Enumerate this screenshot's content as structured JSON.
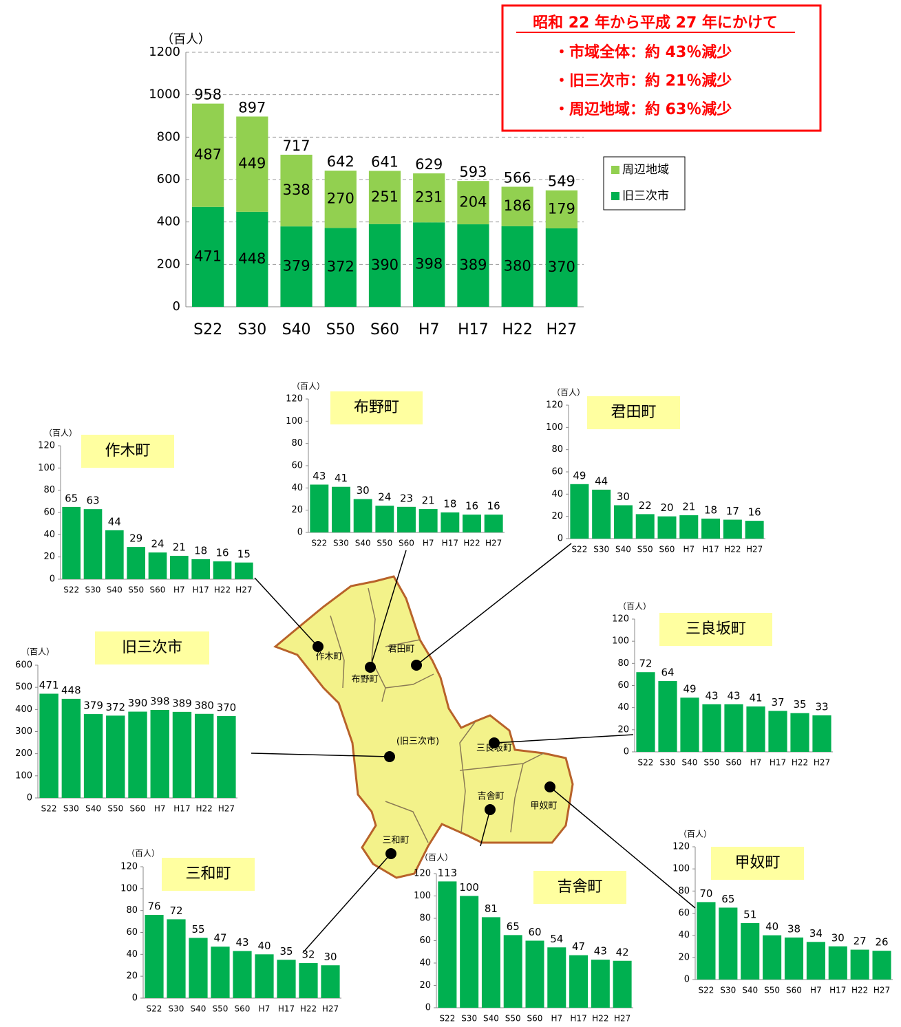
{
  "chart_data": [
    {
      "type": "bar",
      "stacked": true,
      "unit_label": "（百人）",
      "categories": [
        "S22",
        "S30",
        "S40",
        "S50",
        "S60",
        "H7",
        "H17",
        "H22",
        "H27"
      ],
      "series": [
        {
          "name": "旧三次市",
          "color": "#00b050",
          "values": [
            471,
            448,
            379,
            372,
            390,
            398,
            389,
            380,
            370
          ]
        },
        {
          "name": "周辺地域",
          "color": "#92d050",
          "values": [
            487,
            449,
            338,
            270,
            251,
            231,
            204,
            186,
            179
          ]
        }
      ],
      "totals": [
        958,
        897,
        717,
        642,
        641,
        629,
        593,
        566,
        549
      ],
      "ylim": [
        0,
        1200
      ],
      "yticks": [
        0,
        200,
        400,
        600,
        800,
        1000,
        1200
      ],
      "grid": true,
      "annotations": [
        "昭和 22 年から平成 27 年にかけて",
        "・市域全体：約 43％減少",
        "・旧三次市：約 21％減少",
        "・周辺地域：約 63％減少"
      ]
    },
    {
      "type": "bar",
      "title": "作木町",
      "unit_label": "（百人）",
      "color": "#00b050",
      "categories": [
        "S22",
        "S30",
        "S40",
        "S50",
        "S60",
        "H7",
        "H17",
        "H22",
        "H27"
      ],
      "values": [
        65,
        63,
        44,
        29,
        24,
        21,
        18,
        16,
        15
      ],
      "ylim": [
        0,
        120
      ],
      "yticks": [
        0,
        20,
        40,
        60,
        80,
        100,
        120
      ],
      "grid": false
    },
    {
      "type": "bar",
      "title": "布野町",
      "unit_label": "（百人）",
      "color": "#00b050",
      "categories": [
        "S22",
        "S30",
        "S40",
        "S50",
        "S60",
        "H7",
        "H17",
        "H22",
        "H27"
      ],
      "values": [
        43,
        41,
        30,
        24,
        23,
        21,
        18,
        16,
        16
      ],
      "ylim": [
        0,
        120
      ],
      "yticks": [
        0,
        20,
        40,
        60,
        80,
        100,
        120
      ],
      "grid": false
    },
    {
      "type": "bar",
      "title": "君田町",
      "unit_label": "（百人）",
      "color": "#00b050",
      "categories": [
        "S22",
        "S30",
        "S40",
        "S50",
        "S60",
        "H7",
        "H17",
        "H22",
        "H27"
      ],
      "values": [
        49,
        44,
        30,
        22,
        20,
        21,
        18,
        17,
        16
      ],
      "ylim": [
        0,
        120
      ],
      "yticks": [
        0,
        20,
        40,
        60,
        80,
        100,
        120
      ],
      "grid": false
    },
    {
      "type": "bar",
      "title": "旧三次市",
      "unit_label": "（百人）",
      "color": "#00b050",
      "categories": [
        "S22",
        "S30",
        "S40",
        "S50",
        "S60",
        "H7",
        "H17",
        "H22",
        "H27"
      ],
      "values": [
        471,
        448,
        379,
        372,
        390,
        398,
        389,
        380,
        370
      ],
      "ylim": [
        0,
        600
      ],
      "yticks": [
        0,
        100,
        200,
        300,
        400,
        500,
        600
      ],
      "grid": false
    },
    {
      "type": "bar",
      "title": "三良坂町",
      "unit_label": "（百人）",
      "color": "#00b050",
      "categories": [
        "S22",
        "S30",
        "S40",
        "S50",
        "S60",
        "H7",
        "H17",
        "H22",
        "H27"
      ],
      "values": [
        72,
        64,
        49,
        43,
        43,
        41,
        37,
        35,
        33
      ],
      "ylim": [
        0,
        120
      ],
      "yticks": [
        0,
        20,
        40,
        60,
        80,
        100,
        120
      ],
      "grid": false
    },
    {
      "type": "bar",
      "title": "三和町",
      "unit_label": "（百人）",
      "color": "#00b050",
      "categories": [
        "S22",
        "S30",
        "S40",
        "S50",
        "S60",
        "H7",
        "H17",
        "H22",
        "H27"
      ],
      "values": [
        76,
        72,
        55,
        47,
        43,
        40,
        35,
        32,
        30
      ],
      "ylim": [
        0,
        120
      ],
      "yticks": [
        0,
        20,
        40,
        60,
        80,
        100,
        120
      ],
      "grid": false
    },
    {
      "type": "bar",
      "title": "吉舎町",
      "unit_label": "（百人）",
      "color": "#00b050",
      "categories": [
        "S22",
        "S30",
        "S40",
        "S50",
        "S60",
        "H7",
        "H17",
        "H22",
        "H27"
      ],
      "values": [
        113,
        100,
        81,
        65,
        60,
        54,
        47,
        43,
        42
      ],
      "ylim": [
        0,
        120
      ],
      "yticks": [
        0,
        20,
        40,
        60,
        80,
        100,
        120
      ],
      "grid": false
    },
    {
      "type": "bar",
      "title": "甲奴町",
      "unit_label": "（百人）",
      "color": "#00b050",
      "categories": [
        "S22",
        "S30",
        "S40",
        "S50",
        "S60",
        "H7",
        "H17",
        "H22",
        "H27"
      ],
      "values": [
        70,
        65,
        51,
        40,
        38,
        34,
        30,
        27,
        26
      ],
      "ylim": [
        0,
        120
      ],
      "yticks": [
        0,
        20,
        40,
        60,
        80,
        100,
        120
      ],
      "grid": false
    }
  ],
  "map": {
    "labels": [
      "作木町",
      "布野町",
      "君田町",
      "(旧三次市)",
      "三良坂町",
      "吉舎町",
      "甲奴町",
      "三和町"
    ]
  }
}
